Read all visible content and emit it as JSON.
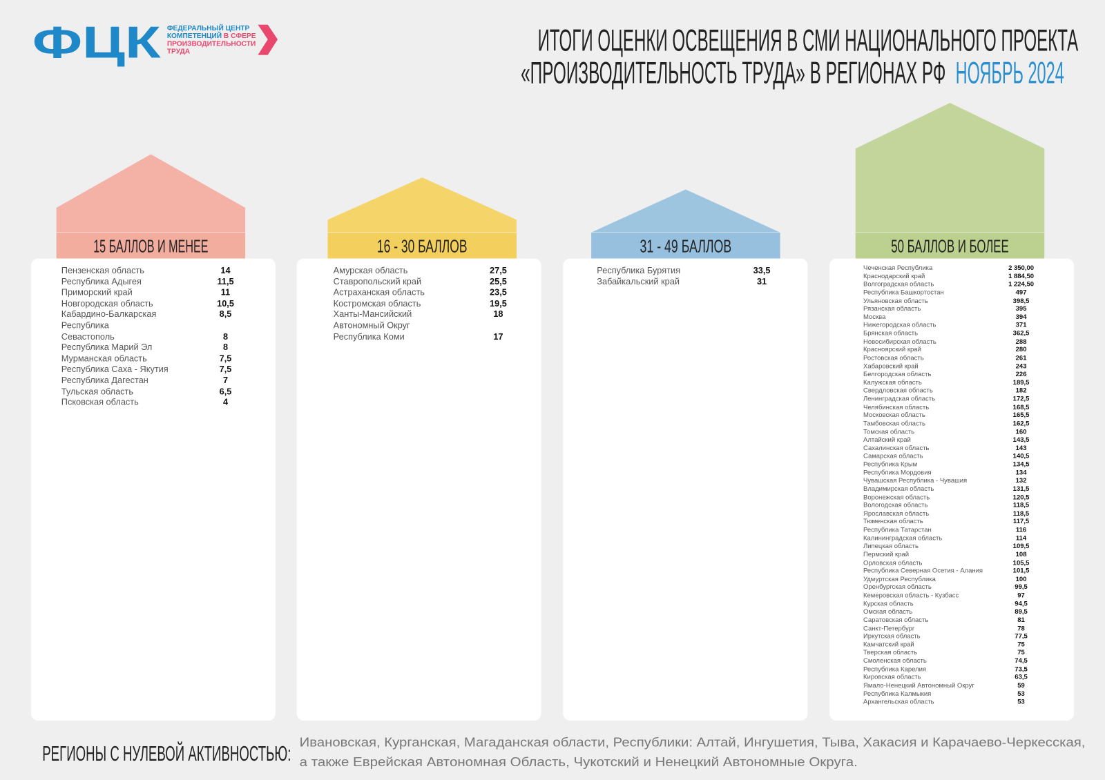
{
  "logo": {
    "mark": "ФЦК",
    "line1": "ФЕДЕРАЛЬНЫЙ ЦЕНТР",
    "line2a": "КОМПЕТЕНЦИЙ",
    "line2b": "В СФЕРЕ",
    "line3": "ПРОИЗВОДИТЕЛЬНОСТИ",
    "line4": "ТРУДА"
  },
  "header": {
    "title_line1": "ИТОГИ ОЦЕНКИ ОСВЕЩЕНИЯ В СМИ НАЦИОНАЛЬНОГО ПРОЕКТА",
    "title_line2": "«ПРОИЗВОДИТЕЛЬНОСТЬ ТРУДА» В РЕГИОНАХ РФ",
    "period": "НОЯБРЬ 2024"
  },
  "columns": [
    {
      "label": "15 БАЛЛОВ И МЕНЕЕ",
      "rows": [
        [
          "Пензенская область",
          "14"
        ],
        [
          "Республика Адыгея",
          "11,5"
        ],
        [
          "Приморский край",
          "11"
        ],
        [
          "Новгородская область",
          "10,5"
        ],
        [
          "Кабардино-Балкарская Республика",
          "8,5"
        ],
        [
          "Севастополь",
          "8"
        ],
        [
          "Республика Марий Эл",
          "8"
        ],
        [
          "Мурманская область",
          "7,5"
        ],
        [
          "Республика Саха - Якутия",
          "7,5"
        ],
        [
          "Республика Дагестан",
          "7"
        ],
        [
          "Тульская область",
          "6,5"
        ],
        [
          "Псковская область",
          "4"
        ]
      ]
    },
    {
      "label": "16 - 30 БАЛЛОВ",
      "rows": [
        [
          "Амурская область",
          "27,5"
        ],
        [
          "Ставропольский край",
          "25,5"
        ],
        [
          "Астраханская область",
          "23,5"
        ],
        [
          "Костромская область",
          "19,5"
        ],
        [
          "Ханты-Мансийский Автономный Округ",
          "18"
        ],
        [
          "Республика Коми",
          "17"
        ]
      ]
    },
    {
      "label": "31 - 49 БАЛЛОВ",
      "rows": [
        [
          "Республика Бурятия",
          "33,5"
        ],
        [
          "Забайкальский край",
          "31"
        ]
      ]
    },
    {
      "label": "50 БАЛЛОВ И БОЛЕЕ",
      "rows": [
        [
          "Чеченская Республика",
          "2 350,00"
        ],
        [
          "Краснодарский край",
          "1 884,50"
        ],
        [
          "Волгоградская область",
          "1 224,50"
        ],
        [
          "Республика Башкортостан",
          "497"
        ],
        [
          "Ульяновская область",
          "398,5"
        ],
        [
          "Рязанская область",
          "395"
        ],
        [
          "Москва",
          "394"
        ],
        [
          "Нижегородская область",
          "371"
        ],
        [
          "Брянская область",
          "362,5"
        ],
        [
          "Новосибирская область",
          "288"
        ],
        [
          "Красноярский край",
          "280"
        ],
        [
          "Ростовская область",
          "261"
        ],
        [
          "Хабаровский край",
          "243"
        ],
        [
          "Белгородская область",
          "226"
        ],
        [
          "Калужская область",
          "189,5"
        ],
        [
          "Свердловская область",
          "182"
        ],
        [
          "Ленинградская область",
          "172,5"
        ],
        [
          "Челябинская область",
          "168,5"
        ],
        [
          "Московская область",
          "165,5"
        ],
        [
          "Тамбовская область",
          "162,5"
        ],
        [
          "Томская область",
          "160"
        ],
        [
          "Алтайский край",
          "143,5"
        ],
        [
          "Сахалинская область",
          "143"
        ],
        [
          "Самарская область",
          "140,5"
        ],
        [
          "Республика Крым",
          "134,5"
        ],
        [
          "Республика Мордовия",
          "134"
        ],
        [
          "Чувашская Республика - Чувашия",
          "132"
        ],
        [
          "Владимирская область",
          "131,5"
        ],
        [
          "Воронежская область",
          "120,5"
        ],
        [
          "Вологодская область",
          "118,5"
        ],
        [
          "Ярославская область",
          "118,5"
        ],
        [
          "Тюменская область",
          "117,5"
        ],
        [
          "Республика Татарстан",
          "116"
        ],
        [
          "Калининградская область",
          "114"
        ],
        [
          "Липецкая область",
          "109,5"
        ],
        [
          "Пермский край",
          "108"
        ],
        [
          "Орловская область",
          "105,5"
        ],
        [
          "Республика Северная Осетия - Алания",
          "101,5"
        ],
        [
          "Удмуртская Республика",
          "100"
        ],
        [
          "Оренбургская область",
          "99,5"
        ],
        [
          "Кемеровская область - Кузбасс",
          "97"
        ],
        [
          "Курская область",
          "94,5"
        ],
        [
          "Омская область",
          "89,5"
        ],
        [
          "Саратовская область",
          "81"
        ],
        [
          "Санкт-Петербург",
          "78"
        ],
        [
          "Иркутская область",
          "77,5"
        ],
        [
          "Камчатский край",
          "75"
        ],
        [
          "Тверская область",
          "75"
        ],
        [
          "Смоленская область",
          "74,5"
        ],
        [
          "Республика Карелия",
          "73,5"
        ],
        [
          "Кировская область",
          "63,5"
        ],
        [
          "Ямало-Ненецкий Автономный Округ",
          "59"
        ],
        [
          "Республика Калмыкия",
          "53"
        ],
        [
          "Архангельская область",
          "53"
        ]
      ]
    }
  ],
  "footer": {
    "label": "РЕГИОНЫ С НУЛЕВОЙ АКТИВНОСТЬЮ:",
    "line1": "Ивановская, Курганская, Магаданская области, Республики: Алтай, Ингушетия, Тыва, Хакасия и Карачаево-Черкесская,",
    "line2": "а также Еврейская Автономная Область, Чукотский и Ненецкий Автономные Округа."
  }
}
